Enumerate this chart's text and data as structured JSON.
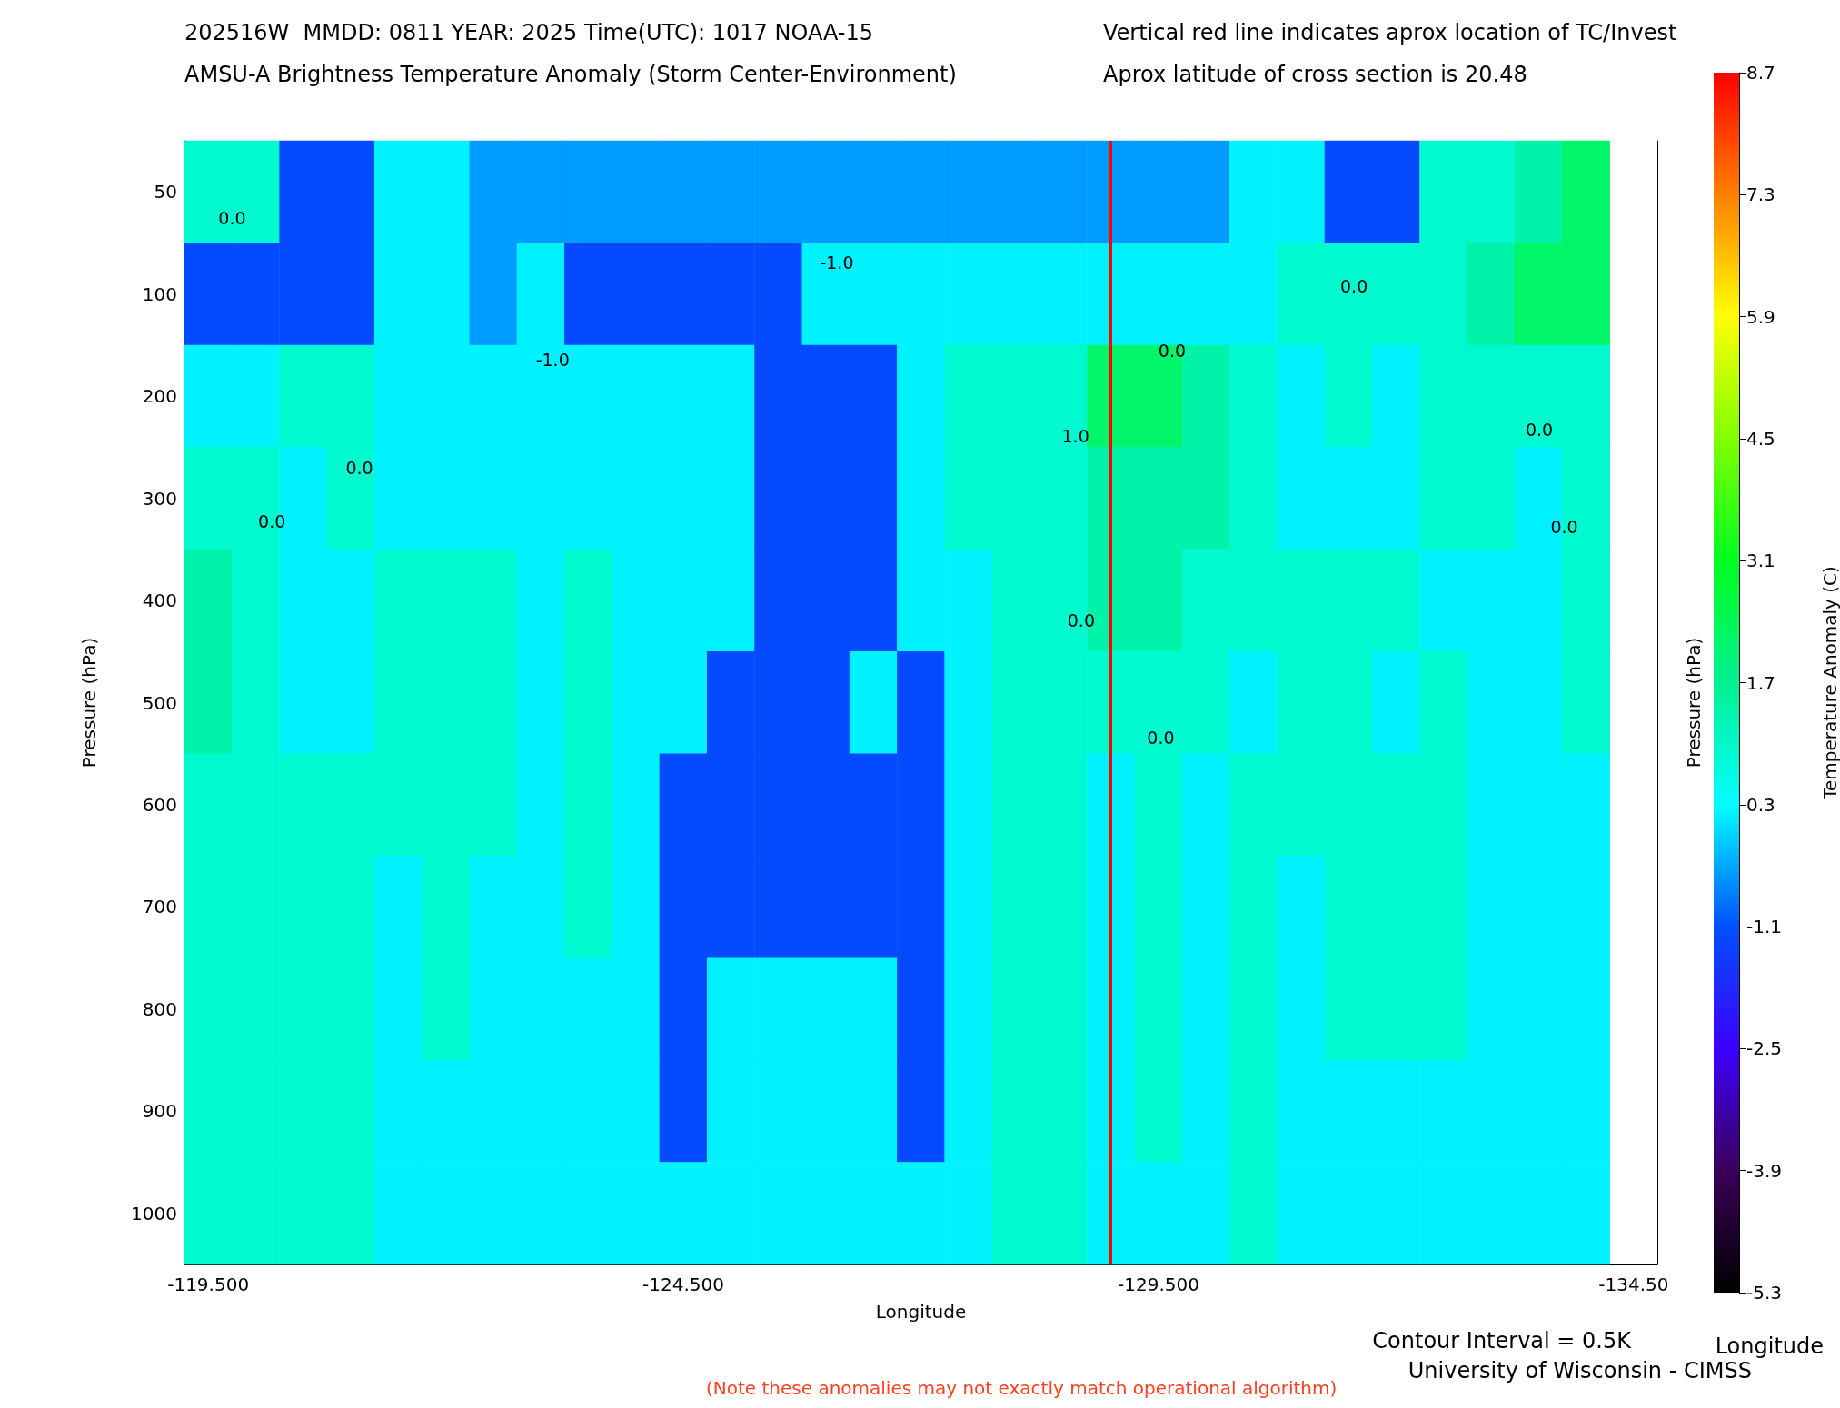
{
  "chart_data": {
    "type": "heatmap",
    "title": "202516W  MMDD: 0811 YEAR: 2025 Time(UTC): 1017 NOAA-15",
    "subtitle": "AMSU-A Brightness Temperature Anomaly (Storm Center-Environment)",
    "xlabel": "Longitude",
    "ylabel": "Pressure (hPa)",
    "y2label": "Pressure (hPa)",
    "clabel": "Temperature Anomaly (C)",
    "categories": [
      "-119.500",
      null,
      null,
      null,
      null,
      null,
      null,
      null,
      null,
      null,
      "-124.500",
      null,
      null,
      null,
      null,
      null,
      null,
      null,
      null,
      null,
      "-129.500",
      null,
      null,
      null,
      null,
      null,
      null,
      null,
      null,
      null,
      "-134.50"
    ],
    "y_categories": [
      "50",
      "100",
      "200",
      "300",
      "400",
      "500",
      "600",
      "700",
      "800",
      "900",
      "1000"
    ],
    "cells": [
      [
        0.9,
        0.9,
        -1.2,
        -1.2,
        0.2,
        0.2,
        -0.5,
        -0.5,
        -0.5,
        -0.5,
        -0.5,
        -0.5,
        -0.5,
        -0.5,
        -0.5,
        -0.5,
        -0.5,
        -0.5,
        -0.5,
        -0.5,
        -0.5,
        -0.5,
        0.2,
        0.2,
        -1.2,
        -1.2,
        0.9,
        0.9,
        1.4,
        2.2,
        null
      ],
      [
        -1.2,
        -1.2,
        -1.2,
        -1.2,
        0.2,
        0.2,
        -0.5,
        0.2,
        -1.2,
        -1.2,
        -1.2,
        -1.2,
        -1.2,
        0.2,
        0.2,
        0.2,
        0.2,
        0.2,
        0.2,
        0.2,
        0.2,
        0.2,
        0.2,
        0.9,
        0.9,
        0.9,
        0.9,
        1.4,
        2.2,
        2.2,
        null
      ],
      [
        0.2,
        0.2,
        0.9,
        0.9,
        0.2,
        0.2,
        0.2,
        0.2,
        0.2,
        0.2,
        0.2,
        0.2,
        -1.2,
        -1.2,
        -1.2,
        0.2,
        0.9,
        0.9,
        0.9,
        2.2,
        2.2,
        1.4,
        0.9,
        0.2,
        0.9,
        0.2,
        0.9,
        0.9,
        0.9,
        0.9,
        null
      ],
      [
        0.9,
        0.9,
        0.2,
        0.9,
        0.2,
        0.2,
        0.2,
        0.2,
        0.2,
        0.2,
        0.2,
        0.2,
        -1.2,
        -1.2,
        -1.2,
        0.2,
        0.9,
        0.9,
        0.9,
        1.4,
        1.4,
        1.4,
        0.9,
        0.2,
        0.2,
        0.2,
        0.9,
        0.9,
        0.2,
        0.9,
        null
      ],
      [
        1.4,
        0.9,
        0.2,
        0.2,
        0.9,
        0.9,
        0.9,
        0.2,
        0.9,
        0.2,
        0.2,
        0.2,
        -1.2,
        -1.2,
        -1.2,
        0.2,
        0.2,
        0.9,
        0.9,
        1.4,
        1.4,
        0.9,
        0.9,
        0.9,
        0.9,
        0.9,
        0.2,
        0.2,
        0.2,
        0.9,
        null
      ],
      [
        1.4,
        0.9,
        0.2,
        0.2,
        0.9,
        0.9,
        0.9,
        0.2,
        0.9,
        0.2,
        0.2,
        -1.2,
        -1.2,
        -1.2,
        0.2,
        -1.2,
        0.2,
        0.9,
        0.9,
        0.9,
        0.9,
        0.9,
        0.2,
        0.9,
        0.9,
        0.2,
        0.9,
        0.2,
        0.2,
        0.9,
        null
      ],
      [
        0.9,
        0.9,
        0.9,
        0.9,
        0.9,
        0.9,
        0.9,
        0.2,
        0.9,
        0.2,
        -1.2,
        -1.2,
        -1.2,
        -1.2,
        -1.2,
        -1.2,
        0.2,
        0.9,
        0.9,
        0.2,
        0.9,
        0.2,
        0.9,
        0.9,
        0.9,
        0.9,
        0.9,
        0.2,
        0.2,
        0.2,
        null
      ],
      [
        0.9,
        0.9,
        0.9,
        0.9,
        0.2,
        0.9,
        0.2,
        0.2,
        0.9,
        0.2,
        -1.2,
        -1.2,
        -1.2,
        -1.2,
        -1.2,
        -1.2,
        0.2,
        0.9,
        0.9,
        0.2,
        0.9,
        0.2,
        0.9,
        0.2,
        0.9,
        0.9,
        0.9,
        0.2,
        0.2,
        0.2,
        null
      ],
      [
        0.9,
        0.9,
        0.9,
        0.9,
        0.2,
        0.9,
        0.2,
        0.2,
        0.2,
        0.2,
        -1.2,
        0.2,
        0.2,
        0.2,
        0.2,
        -1.2,
        0.2,
        0.9,
        0.9,
        0.2,
        0.9,
        0.2,
        0.9,
        0.2,
        0.9,
        0.9,
        0.9,
        0.2,
        0.2,
        0.2,
        null
      ],
      [
        0.9,
        0.9,
        0.9,
        0.9,
        0.2,
        0.2,
        0.2,
        0.2,
        0.2,
        0.2,
        -1.2,
        0.2,
        0.2,
        0.2,
        0.2,
        -1.2,
        0.2,
        0.9,
        0.9,
        0.2,
        0.9,
        0.2,
        0.9,
        0.2,
        0.2,
        0.2,
        0.2,
        0.2,
        0.2,
        0.2,
        null
      ],
      [
        0.9,
        0.9,
        0.9,
        0.9,
        0.2,
        0.2,
        0.2,
        0.2,
        0.2,
        0.2,
        0.2,
        0.2,
        0.2,
        0.2,
        0.2,
        0.2,
        0.2,
        0.9,
        0.9,
        0.2,
        0.2,
        0.2,
        0.9,
        0.2,
        0.2,
        0.2,
        0.2,
        0.2,
        0.2,
        0.2,
        null
      ]
    ],
    "clim": [
      -5.3,
      8.7
    ],
    "cticks": [
      -5.3,
      -3.9,
      -2.5,
      -1.1,
      0.3,
      1.7,
      3.1,
      4.5,
      5.9,
      7.3,
      8.7
    ],
    "annotations": [
      "Vertical red line indicates aprox location of TC/Invest",
      "Aprox latitude of cross section is 20.48",
      "Contour Interval = 0.5K",
      "University of Wisconsin - CIMSS",
      "(Note these anomalies may not exactly match operational algorithm)",
      "Longitude",
      "0.0",
      "-1.0",
      "0.0",
      "-1.0",
      "0.0",
      "1.0",
      "0.0",
      "0.0",
      "0.0",
      "0.0",
      "0.0",
      "0.0"
    ]
  }
}
